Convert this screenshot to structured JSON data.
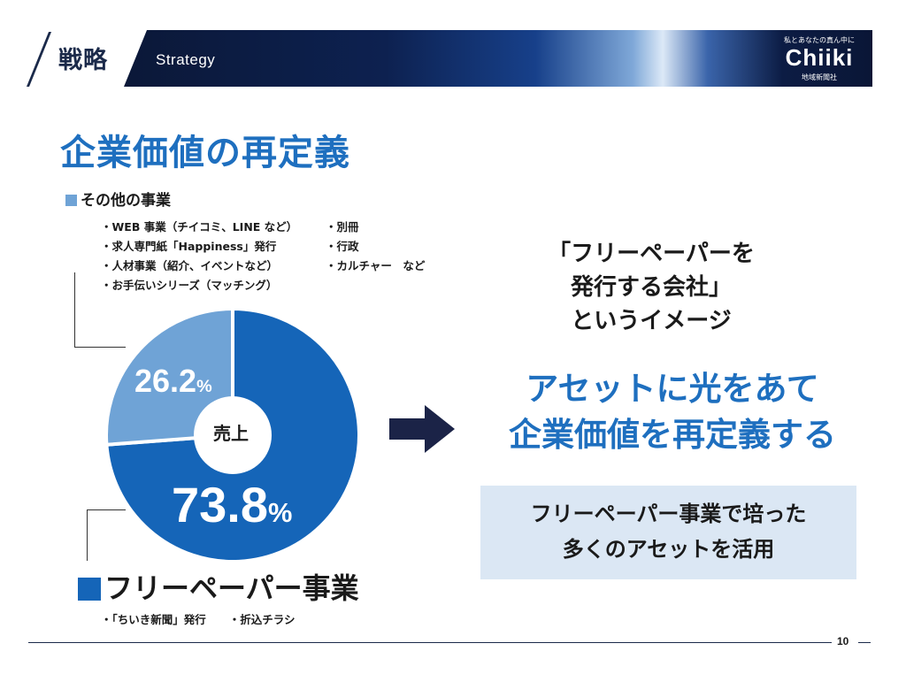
{
  "header": {
    "section_jp": "戦略",
    "section_en": "Strategy",
    "logo_tagline": "私とあなたの真ん中に",
    "logo_name": "Chiiki",
    "logo_subtitle": "地域新聞社"
  },
  "title": "企業価値の再定義",
  "other_business": {
    "heading": "その他の事業",
    "items_left": [
      "・WEB 事業（チイコミ、LINE など）",
      "・求人専門紙「Happiness」発行",
      "・人材事業（紹介、イベントなど）",
      "・お手伝いシリーズ（マッチング）"
    ],
    "items_right": [
      "・別冊",
      "・行政",
      "・カルチャー　など"
    ]
  },
  "chart_data": {
    "type": "pie",
    "center_label": "売上",
    "slices": [
      {
        "label": "フリーペーパー事業",
        "value": 73.8,
        "color": "#1565b8"
      },
      {
        "label": "その他の事業",
        "value": 26.2,
        "color": "#6fa3d6"
      }
    ],
    "labels": {
      "main_number": "73.8",
      "other_number": "26.2",
      "unit": "%"
    }
  },
  "free_paper": {
    "heading": "フリーペーパー事業",
    "items": [
      "・「ちいき新聞」発行",
      "・折込チラシ"
    ]
  },
  "image_text": [
    "「フリーペーパーを",
    "発行する会社」",
    "というイメージ"
  ],
  "message": [
    "アセットに光をあて",
    "企業価値を再定義する"
  ],
  "asset_box": [
    "フリーペーパー事業で培った",
    "多くのアセットを活用"
  ],
  "footer": {
    "page": "10"
  },
  "colors": {
    "primary": "#1e6fbf",
    "main_slice": "#1565b8",
    "other_slice": "#6fa3d6",
    "navy": "#1b2a4a",
    "box_bg": "#dbe7f4"
  }
}
